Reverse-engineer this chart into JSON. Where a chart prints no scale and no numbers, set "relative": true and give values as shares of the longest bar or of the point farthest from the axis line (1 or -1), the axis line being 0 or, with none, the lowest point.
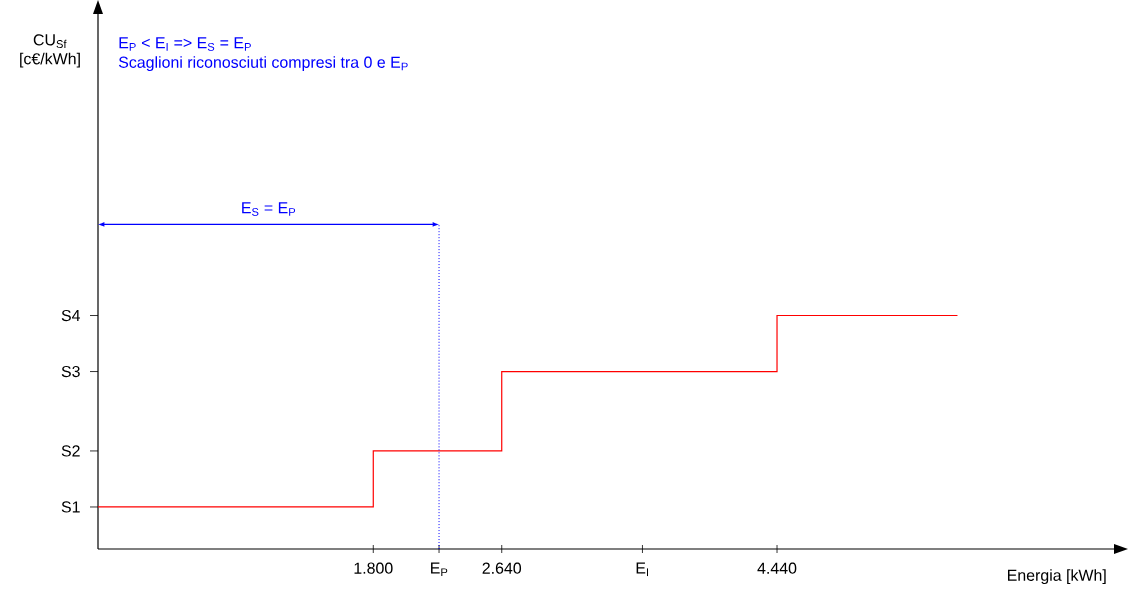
{
  "chart_data": {
    "type": "step",
    "xlabel": "Energia [kWh]",
    "relative": true,
    "x": [
      0,
      1800,
      2640,
      4440,
      5620
    ],
    "series": [
      {
        "color": "#ff0000",
        "values": [
          0.18,
          0.42,
          0.76,
          1,
          1
        ]
      }
    ],
    "xlim": [
      0,
      6650
    ],
    "xticks": [
      {
        "value": 1800,
        "label": "1.800"
      },
      {
        "value": 2230,
        "label": "E$_{P}$"
      },
      {
        "value": 2640,
        "label": "2.640"
      },
      {
        "value": 3560,
        "label": "E$_{I}$"
      },
      {
        "value": 4440,
        "label": "4.440"
      }
    ],
    "ref_lines": [
      {
        "axis": "x",
        "value": 2230,
        "color": "#0000ff",
        "line_style": "dotted"
      }
    ],
    "annotations": [
      "E$_{P}$ < E$_{I}$ => E$_{S}$ = E$_{P}$",
      "Scaglioni riconosciuti compresi tra 0  e E$_{P}$",
      "E$_{S}$ = E$_{P}$",
      "S1",
      "S2",
      "S3",
      "S4",
      "CU$_{Sf}$ [c€/kWh]"
    ]
  }
}
